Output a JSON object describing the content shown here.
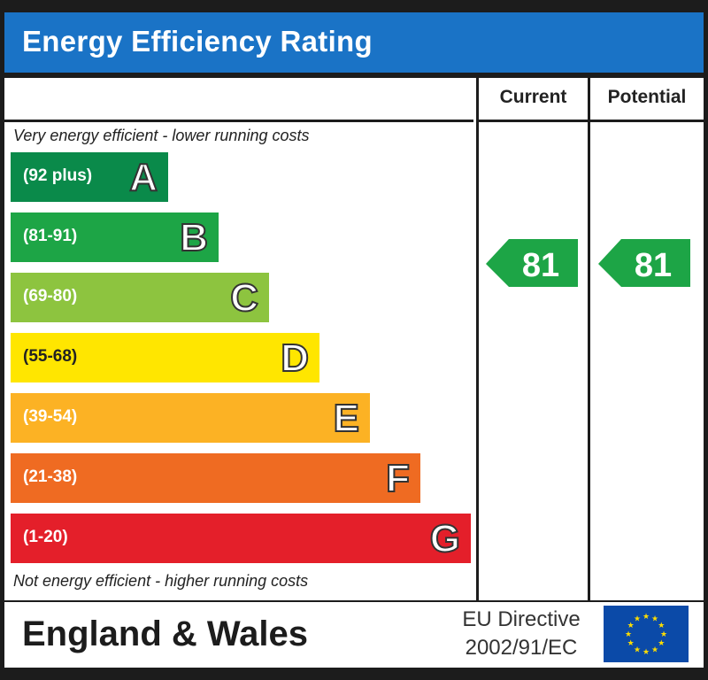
{
  "title": "Energy Efficiency Rating",
  "columns": {
    "current": "Current",
    "potential": "Potential"
  },
  "captions": {
    "top": "Very energy efficient - lower running costs",
    "bottom": "Not energy efficient - higher running costs"
  },
  "footer": {
    "region": "England & Wales",
    "directive_line1": "EU Directive",
    "directive_line2": "2002/91/EC"
  },
  "chart_data": {
    "type": "bar",
    "title": "Energy Efficiency Rating",
    "categories": [
      "A",
      "B",
      "C",
      "D",
      "E",
      "F",
      "G"
    ],
    "ranges": [
      "(92 plus)",
      "(81-91)",
      "(69-80)",
      "(55-68)",
      "(39-54)",
      "(21-38)",
      "(1-20)"
    ],
    "colors": [
      "#0a8a4a",
      "#1da546",
      "#8dc43f",
      "#ffe600",
      "#fcb224",
      "#ef6b22",
      "#e41f2a"
    ],
    "current": {
      "value": 81,
      "band": "B",
      "color": "#1da546"
    },
    "potential": {
      "value": 81,
      "band": "B",
      "color": "#1da546"
    }
  },
  "colors": {
    "title_bar": "#1a73c6",
    "frame": "#1c1c1c",
    "eu_flag": "#0b4aa8",
    "eu_stars": "#ffde00"
  }
}
